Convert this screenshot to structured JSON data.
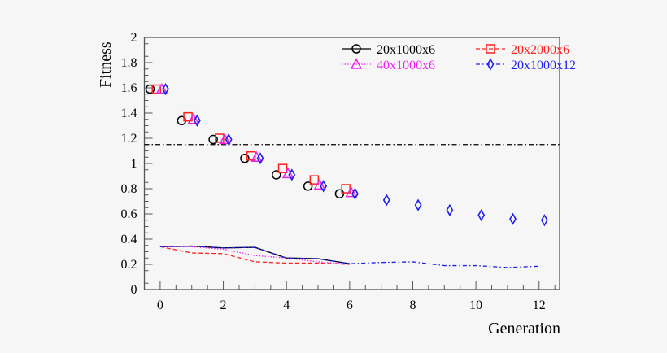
{
  "chart_data": {
    "type": "scatter",
    "xlabel": "Generation",
    "ylabel": "Fitness",
    "xlim": [
      -0.5,
      12.65
    ],
    "ylim": [
      0,
      2
    ],
    "xticks": [
      0,
      2,
      4,
      6,
      8,
      10,
      12
    ],
    "yticks": [
      0,
      0.2,
      0.4,
      0.6,
      0.8,
      1,
      1.2,
      1.4,
      1.6,
      1.8,
      2
    ],
    "ytick_labels": [
      "0",
      "0.2",
      "0.4",
      "0.6",
      "0.8",
      "1",
      "1.2",
      "1.4",
      "1.6",
      "1.8",
      "2"
    ],
    "grid": false,
    "legend_position": "top-right",
    "reference_line": {
      "y": 1.15,
      "style": "dash-dot",
      "color": "#000000"
    },
    "series": [
      {
        "name": "20x1000x6",
        "color": "#000000",
        "marker": "circle",
        "line_style": "solid",
        "x": [
          0,
          1,
          2,
          3,
          4,
          5,
          6
        ],
        "marker_values": [
          1.59,
          1.34,
          1.19,
          1.04,
          0.91,
          0.82,
          0.76
        ],
        "line_values": [
          0.34,
          0.345,
          0.33,
          0.335,
          0.25,
          0.245,
          0.205
        ]
      },
      {
        "name": "20x2000x6",
        "color": "#ff2020",
        "marker": "square",
        "line_style": "dashed",
        "x": [
          0,
          1,
          2,
          3,
          4,
          5,
          6
        ],
        "marker_values": [
          1.59,
          1.37,
          1.2,
          1.06,
          0.96,
          0.87,
          0.8
        ],
        "line_values": [
          0.34,
          0.29,
          0.285,
          0.22,
          0.21,
          0.21,
          0.2
        ]
      },
      {
        "name": "40x1000x6",
        "color": "#ee22ee",
        "marker": "triangle",
        "line_style": "dotted",
        "x": [
          0,
          1,
          2,
          3,
          4,
          5,
          6
        ],
        "marker_values": [
          1.59,
          1.35,
          1.19,
          1.05,
          0.92,
          0.83,
          0.77
        ],
        "line_values": [
          0.34,
          0.34,
          0.32,
          0.27,
          0.25,
          0.22,
          0.2
        ]
      },
      {
        "name": "20x1000x12",
        "color": "#2020ee",
        "marker": "diamond",
        "line_style": "dash-dot",
        "x": [
          0,
          1,
          2,
          3,
          4,
          5,
          6,
          7,
          8,
          9,
          10,
          11,
          12
        ],
        "marker_values": [
          1.59,
          1.34,
          1.19,
          1.04,
          0.91,
          0.82,
          0.76,
          0.71,
          0.67,
          0.63,
          0.59,
          0.56,
          0.55
        ],
        "line_values": [
          0.34,
          0.345,
          0.33,
          0.335,
          0.25,
          0.245,
          0.205,
          0.215,
          0.22,
          0.19,
          0.19,
          0.175,
          0.185
        ]
      }
    ]
  }
}
